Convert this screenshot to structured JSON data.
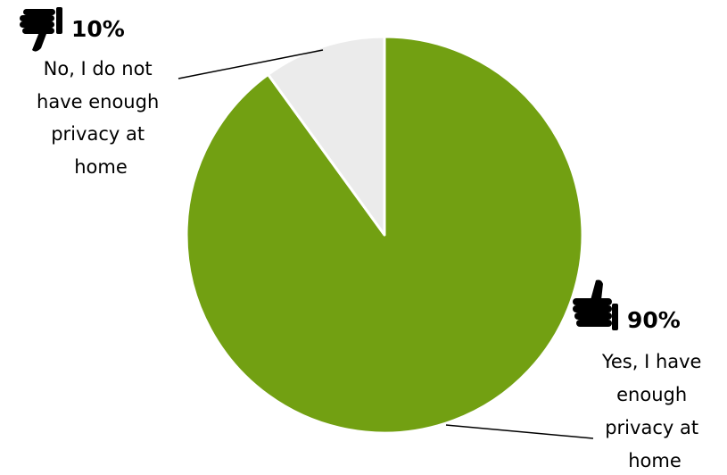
{
  "chart_data": {
    "type": "pie",
    "title": "",
    "slices": [
      {
        "label": "Yes, I have enough privacy at home",
        "label_lines": [
          "Yes, I have",
          "enough",
          "privacy at",
          "home"
        ],
        "value": 90,
        "value_label": "90%",
        "color": "#72a012",
        "icon": "thumbs-up-icon"
      },
      {
        "label": "No, I do not have enough privacy at home",
        "label_lines": [
          "No, I do not",
          "have enough",
          "privacy at",
          "home"
        ],
        "value": 10,
        "value_label": "10%",
        "color": "#ebebeb",
        "icon": "thumbs-down-icon"
      }
    ]
  }
}
